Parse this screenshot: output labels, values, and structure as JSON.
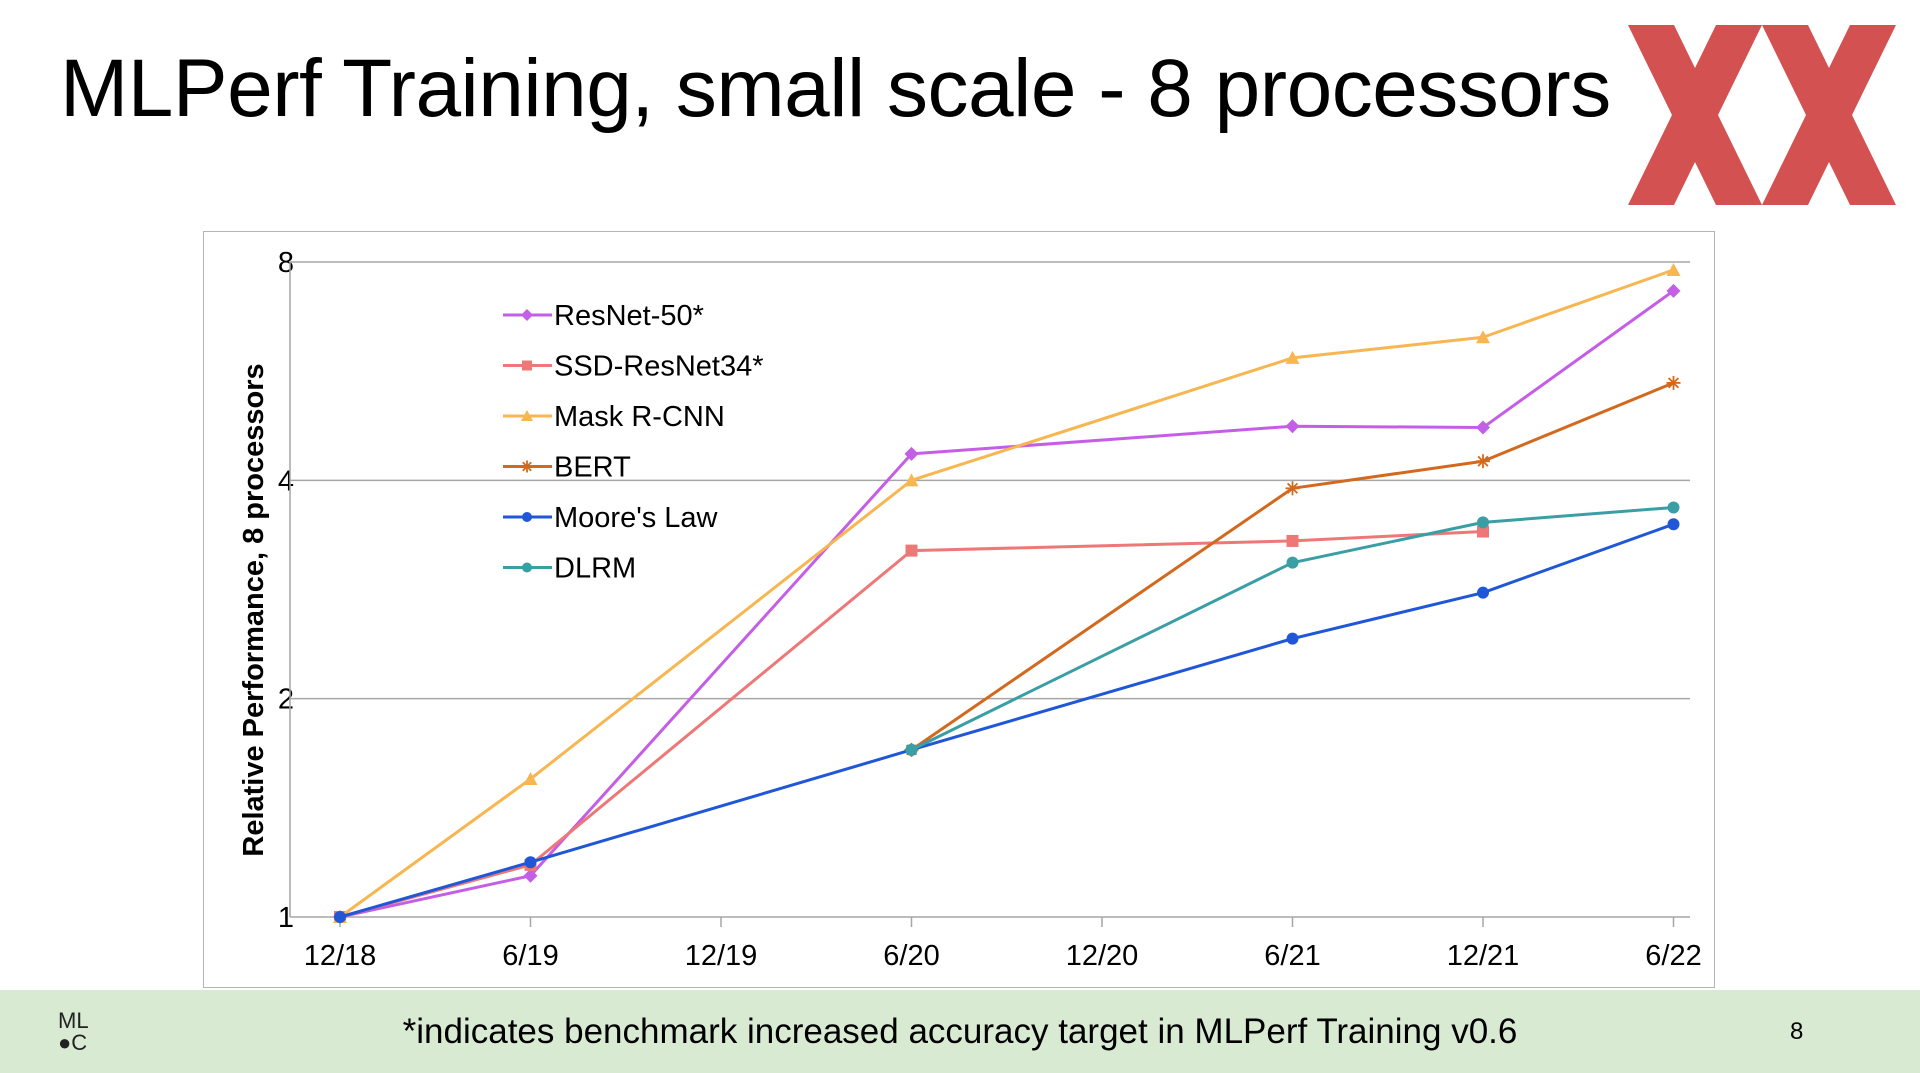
{
  "slide": {
    "title": "MLPerf Training, small scale - 8 processors",
    "footnote": "*indicates benchmark increased accuracy target in MLPerf Training v0.6",
    "page_number": "8",
    "logo_text": [
      "ML",
      "C"
    ]
  },
  "colors": {
    "footer_bg": "#d9ead3",
    "logo_red": "#cc3333"
  },
  "chart_data": {
    "type": "line",
    "xlabel": "",
    "ylabel": "Relative Performance, 8 processors",
    "y_scale": "log2",
    "ylim": [
      1,
      8
    ],
    "x_ticks": [
      "12/18",
      "6/19",
      "12/19",
      "6/20",
      "12/20",
      "6/21",
      "12/21",
      "6/22"
    ],
    "y_ticks": [
      "1",
      "2",
      "4",
      "8"
    ],
    "grid": "horizontal",
    "legend_position": "top-left",
    "series": [
      {
        "name": "ResNet-50*",
        "color": "#c55ee6",
        "marker": "diamond",
        "points": [
          [
            "12/18",
            1.0
          ],
          [
            "6/19",
            1.14
          ],
          [
            "6/20",
            4.35
          ],
          [
            "6/21",
            4.75
          ],
          [
            "12/21",
            4.73
          ],
          [
            "6/22",
            7.3
          ]
        ]
      },
      {
        "name": "SSD-ResNet34*",
        "color": "#ee7777",
        "marker": "square",
        "points": [
          [
            "12/18",
            1.0
          ],
          [
            "6/19",
            1.18
          ],
          [
            "6/20",
            3.2
          ],
          [
            "6/21",
            3.3
          ],
          [
            "12/21",
            3.4
          ]
        ]
      },
      {
        "name": "Mask R-CNN",
        "color": "#f7b650",
        "marker": "triangle",
        "points": [
          [
            "12/18",
            1.0
          ],
          [
            "6/19",
            1.55
          ],
          [
            "6/20",
            4.0
          ],
          [
            "6/21",
            5.9
          ],
          [
            "12/21",
            6.3
          ],
          [
            "6/22",
            7.8
          ]
        ]
      },
      {
        "name": "BERT",
        "color": "#d2691e",
        "marker": "star",
        "points": [
          [
            "6/20",
            1.7
          ],
          [
            "6/21",
            3.9
          ],
          [
            "12/21",
            4.25
          ],
          [
            "6/22",
            5.45
          ]
        ]
      },
      {
        "name": "Moore's Law",
        "color": "#1f57d8",
        "marker": "circle",
        "points": [
          [
            "12/18",
            1.0
          ],
          [
            "6/19",
            1.19
          ],
          [
            "6/20",
            1.7
          ],
          [
            "6/21",
            2.42
          ],
          [
            "12/21",
            2.8
          ],
          [
            "6/22",
            3.48
          ]
        ]
      },
      {
        "name": "DLRM",
        "color": "#3a9fa5",
        "marker": "circle",
        "points": [
          [
            "6/20",
            1.7
          ],
          [
            "6/21",
            3.08
          ],
          [
            "12/21",
            3.5
          ],
          [
            "6/22",
            3.67
          ]
        ]
      }
    ]
  }
}
